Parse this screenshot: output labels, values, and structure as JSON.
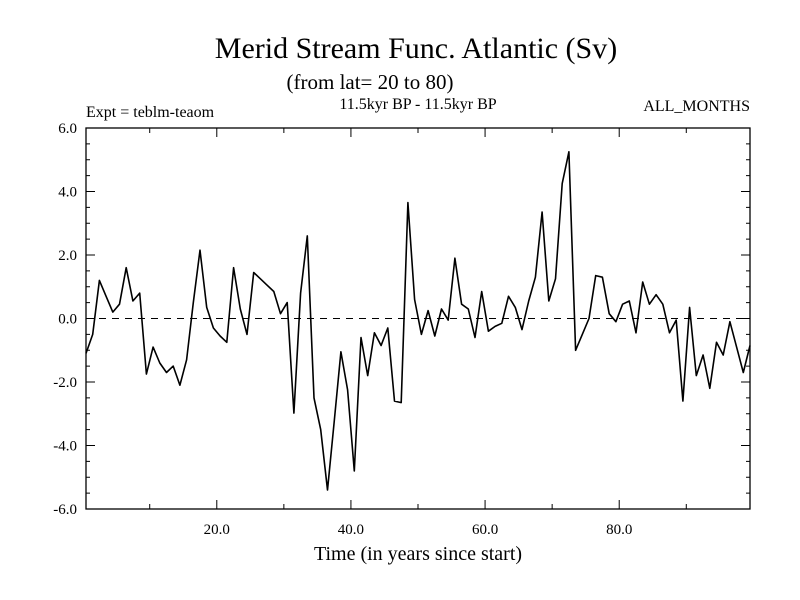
{
  "chart_data": {
    "type": "line",
    "title": "Merid Stream Func. Atlantic (Sv)",
    "subtitle": "(from lat= 20 to 80)",
    "annotations": {
      "left": "Expt = teblm-teaom",
      "center": "11.5kyr BP - 11.5kyr BP",
      "right": "ALL_MONTHS"
    },
    "xlabel": "Time (in years since start)",
    "ylabel": "",
    "xlim": [
      0.5,
      99.5
    ],
    "ylim": [
      -6.0,
      6.0
    ],
    "x_ticks": [
      20.0,
      40.0,
      60.0,
      80.0
    ],
    "x_tick_labels": [
      "20.0",
      "40.0",
      "60.0",
      "80.0"
    ],
    "y_ticks": [
      -6.0,
      -4.0,
      -2.0,
      0.0,
      2.0,
      4.0,
      6.0
    ],
    "y_tick_labels": [
      "-6.0",
      "-4.0",
      "-2.0",
      "0.0",
      "2.0",
      "4.0",
      "6.0"
    ],
    "zero_line": "dashed",
    "grid": false,
    "series": [
      {
        "name": "teblm-teaom",
        "x": [
          0.5,
          1.5,
          2.5,
          3.5,
          4.5,
          5.5,
          6.5,
          7.5,
          8.5,
          9.5,
          10.5,
          11.5,
          12.5,
          13.5,
          14.5,
          15.5,
          16.5,
          17.5,
          18.5,
          19.5,
          20.5,
          21.5,
          22.5,
          23.5,
          24.5,
          25.5,
          26.5,
          27.5,
          28.5,
          29.5,
          30.5,
          31.5,
          32.5,
          33.5,
          34.5,
          35.5,
          36.5,
          37.5,
          38.5,
          39.5,
          40.5,
          41.5,
          42.5,
          43.5,
          44.5,
          45.5,
          46.5,
          47.5,
          48.5,
          49.5,
          50.5,
          51.5,
          52.5,
          53.5,
          54.5,
          55.5,
          56.5,
          57.5,
          58.5,
          59.5,
          60.5,
          61.5,
          62.5,
          63.5,
          64.5,
          65.5,
          66.5,
          67.5,
          68.5,
          69.5,
          70.5,
          71.5,
          72.5,
          73.5,
          74.5,
          75.5,
          76.5,
          77.5,
          78.5,
          79.5,
          80.5,
          81.5,
          82.5,
          83.5,
          84.5,
          85.5,
          86.5,
          87.5,
          88.5,
          89.5,
          90.5,
          91.5,
          92.5,
          93.5,
          94.5,
          95.5,
          96.5,
          97.5,
          98.5,
          99.5
        ],
        "values": [
          -1.1,
          -0.5,
          1.2,
          0.7,
          0.2,
          0.45,
          1.6,
          0.55,
          0.8,
          -1.75,
          -0.9,
          -1.4,
          -1.7,
          -1.5,
          -2.1,
          -1.3,
          0.5,
          2.15,
          0.35,
          -0.3,
          -0.55,
          -0.75,
          1.6,
          0.3,
          -0.5,
          1.45,
          1.25,
          1.05,
          0.85,
          0.15,
          0.5,
          -2.98,
          0.8,
          2.6,
          -2.5,
          -3.5,
          -5.4,
          -3.25,
          -1.05,
          -2.25,
          -4.8,
          -0.6,
          -1.8,
          -0.45,
          -0.85,
          -0.3,
          -2.6,
          -2.65,
          3.65,
          0.6,
          -0.5,
          0.25,
          -0.55,
          0.3,
          -0.05,
          1.9,
          0.45,
          0.3,
          -0.6,
          0.85,
          -0.4,
          -0.25,
          -0.15,
          0.7,
          0.35,
          -0.35,
          0.55,
          1.3,
          3.35,
          0.55,
          1.25,
          4.25,
          5.25,
          -1.0,
          -0.5,
          0.0,
          1.35,
          1.3,
          0.15,
          -0.1,
          0.45,
          0.55,
          -0.45,
          1.15,
          0.45,
          0.75,
          0.45,
          -0.45,
          -0.05,
          -2.6,
          0.35,
          -1.8,
          -1.15,
          -2.2,
          -0.75,
          -1.15,
          -0.1,
          -0.9,
          -1.7,
          -0.85
        ]
      }
    ]
  }
}
